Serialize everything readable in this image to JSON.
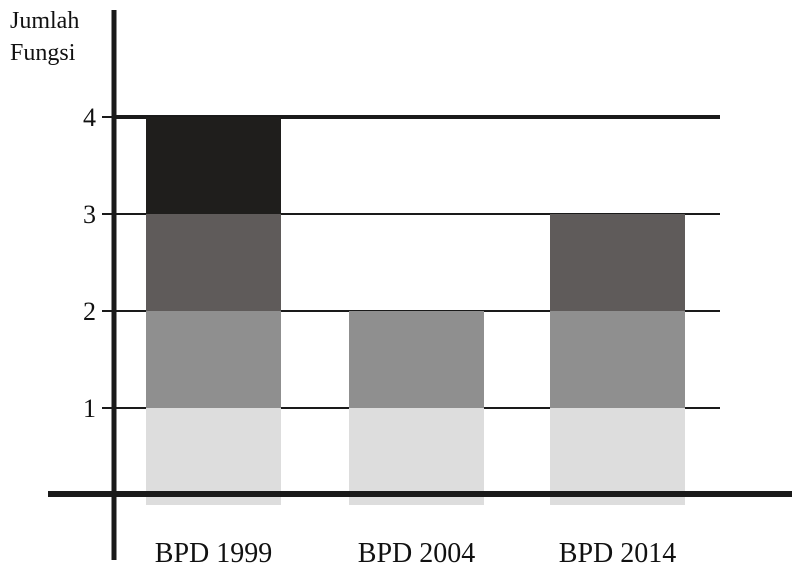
{
  "chart_data": {
    "type": "bar",
    "stacked": true,
    "ylabel_lines": [
      "Jumlah",
      "Fungsi"
    ],
    "xlabel": "",
    "categories": [
      "BPD 1999",
      "BPD 2004",
      "BPD 2014"
    ],
    "series": [
      {
        "values": [
          1,
          1,
          1
        ],
        "color": "#dddddd"
      },
      {
        "values": [
          1,
          1,
          1
        ],
        "color": "#8f8f8f"
      },
      {
        "values": [
          1,
          0,
          1
        ],
        "color": "#5f5b5a"
      },
      {
        "values": [
          1,
          0,
          0
        ],
        "color": "#1f1e1c"
      }
    ],
    "yticks": [
      1,
      2,
      3,
      4
    ],
    "ylim": [
      0,
      4
    ],
    "grid": true,
    "legend": "none"
  }
}
